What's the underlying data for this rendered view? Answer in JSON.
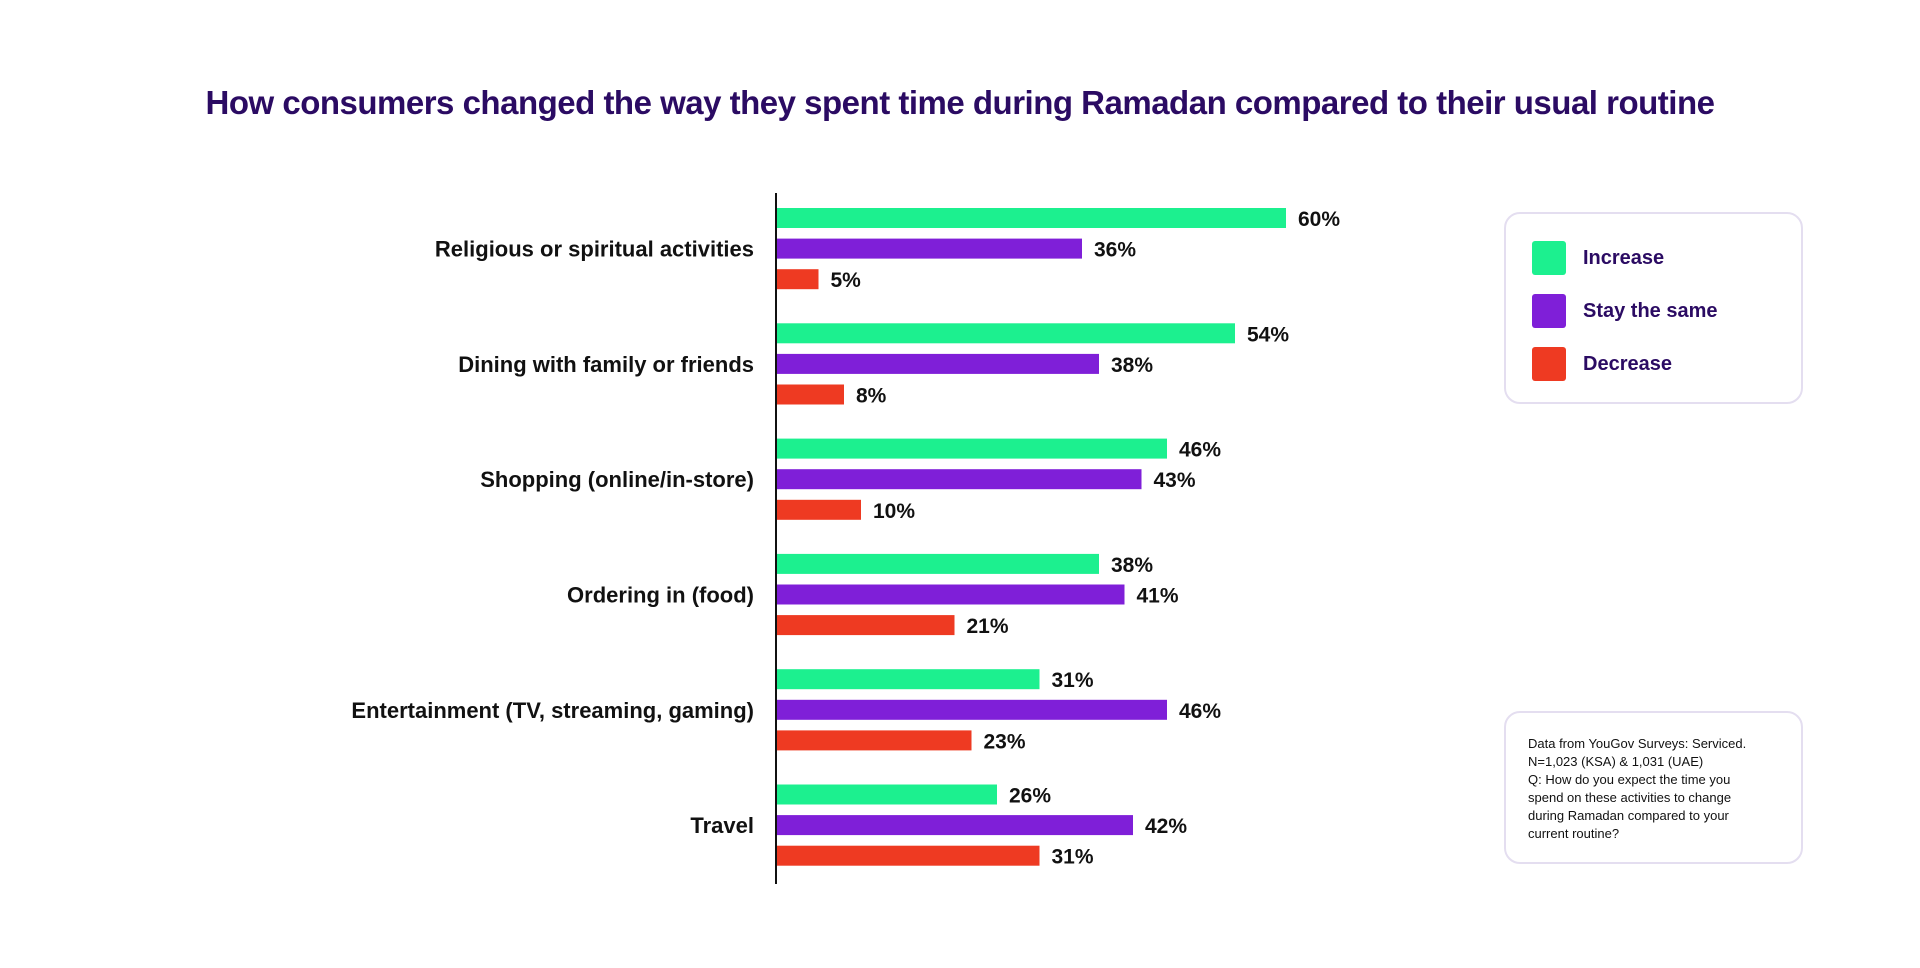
{
  "chart_data": {
    "type": "bar",
    "orientation": "horizontal",
    "title": "How consumers changed the way they spent time during Ramadan compared to their usual routine",
    "categories": [
      "Religious or spiritual activities",
      "Dining with family or friends",
      "Shopping (online/in-store)",
      "Ordering in (food)",
      "Entertainment (TV, streaming, gaming)",
      "Travel"
    ],
    "series": [
      {
        "name": "Increase",
        "color": "#1cf08f",
        "values": [
          60,
          54,
          46,
          38,
          31,
          26
        ]
      },
      {
        "name": "Stay the same",
        "color": "#7f1fd8",
        "values": [
          36,
          38,
          43,
          41,
          46,
          42
        ]
      },
      {
        "name": "Decrease",
        "color": "#ee3a22",
        "values": [
          5,
          8,
          10,
          21,
          23,
          31
        ]
      }
    ],
    "value_suffix": "%",
    "xlim": [
      0,
      70
    ],
    "grid": false,
    "legend_position": "right"
  },
  "note": {
    "lines": [
      "Data from YouGov Surveys: Serviced.",
      "N=1,023 (KSA) & 1,031 (UAE)",
      "Q: How do you expect the time you",
      "spend on these activities to change",
      "during Ramadan compared to your",
      "current routine?"
    ]
  }
}
